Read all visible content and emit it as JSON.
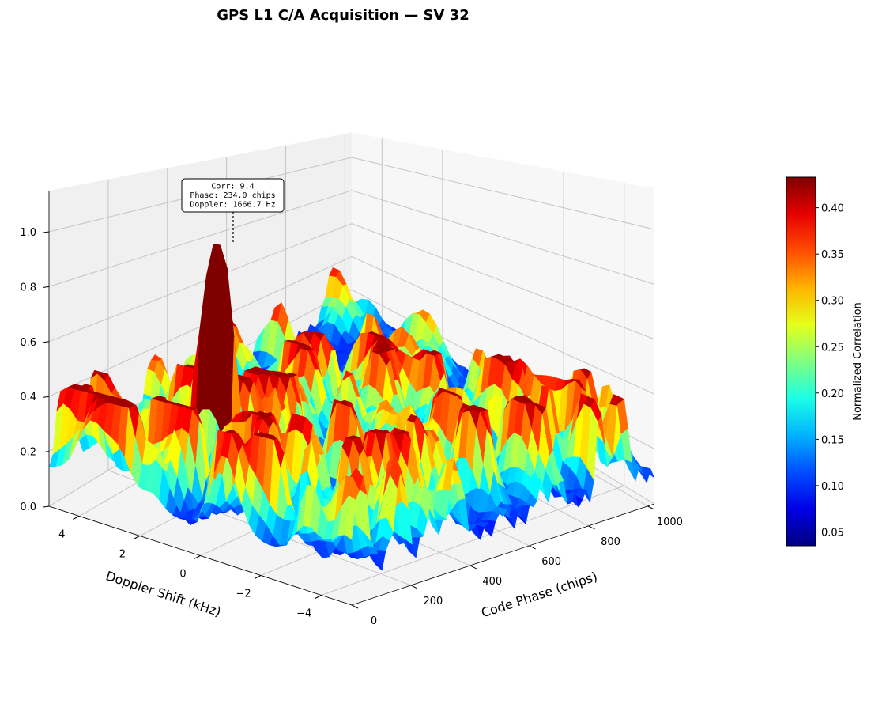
{
  "chart_data": {
    "type": "surface3d",
    "title": "GPS L1 C/A Acquisition — SV 32",
    "xlabel": "Code Phase (chips)",
    "ylabel": "Doppler Shift (kHz)",
    "zlabel": "",
    "x_range": [
      0,
      1023
    ],
    "y_range": [
      -5,
      5
    ],
    "z_range": [
      0,
      1.15
    ],
    "x_ticks": [
      "0",
      "200",
      "400",
      "600",
      "800",
      "1000"
    ],
    "x_tick_values": [
      0,
      200,
      400,
      600,
      800,
      1000
    ],
    "y_ticks": [
      "4",
      "2",
      "0",
      "−2",
      "−4"
    ],
    "y_tick_values": [
      4,
      2,
      0,
      -2,
      -4
    ],
    "z_ticks": [
      "0.0",
      "0.2",
      "0.4",
      "0.6",
      "0.8",
      "1.0"
    ],
    "z_tick_values": [
      0,
      0.2,
      0.4,
      0.6,
      0.8,
      1.0
    ],
    "peak": {
      "code_phase": 234.0,
      "doppler_khz": 1.6667,
      "value": 0.95
    },
    "noise_floor_range": [
      0.05,
      0.42
    ],
    "colormap": "jet",
    "colorbar": {
      "label": "Normalized Correlation",
      "range": [
        0.035,
        0.433
      ],
      "ticks": [
        "0.05",
        "0.10",
        "0.15",
        "0.20",
        "0.25",
        "0.30",
        "0.35",
        "0.40"
      ],
      "tick_values": [
        0.05,
        0.1,
        0.15,
        0.2,
        0.25,
        0.3,
        0.35,
        0.4
      ]
    },
    "annotation": {
      "line1": "Corr: 9.4",
      "line2": "Phase: 234.0 chips",
      "line3": "Doppler: 1666.7 Hz"
    }
  }
}
